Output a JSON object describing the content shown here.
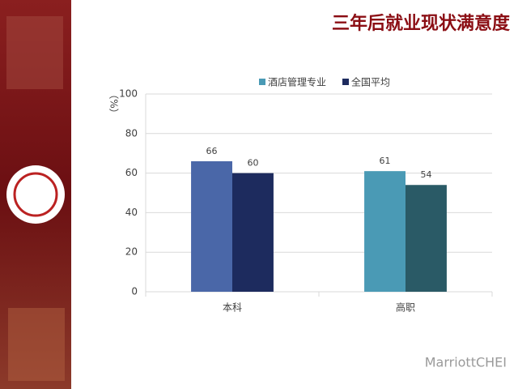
{
  "chart_data": {
    "type": "bar",
    "title": "三年后就业现状满意度",
    "y_label": "（%）",
    "categories": [
      "本科",
      "高职"
    ],
    "series": [
      {
        "name": "酒店管理专业",
        "color": "#4a9ab5",
        "colors": [
          "#4a67a8",
          "#4a9ab5"
        ],
        "values": [
          66,
          61
        ]
      },
      {
        "name": "全国平均",
        "color": "#1d2b5e",
        "colors": [
          "#1d2b5e",
          "#2a5a66"
        ],
        "values": [
          60,
          54
        ]
      }
    ],
    "ylim": [
      0,
      100
    ],
    "yticks": [
      0,
      20,
      40,
      60,
      80,
      100
    ],
    "grid": true
  },
  "watermark": "MarriottCHEI"
}
